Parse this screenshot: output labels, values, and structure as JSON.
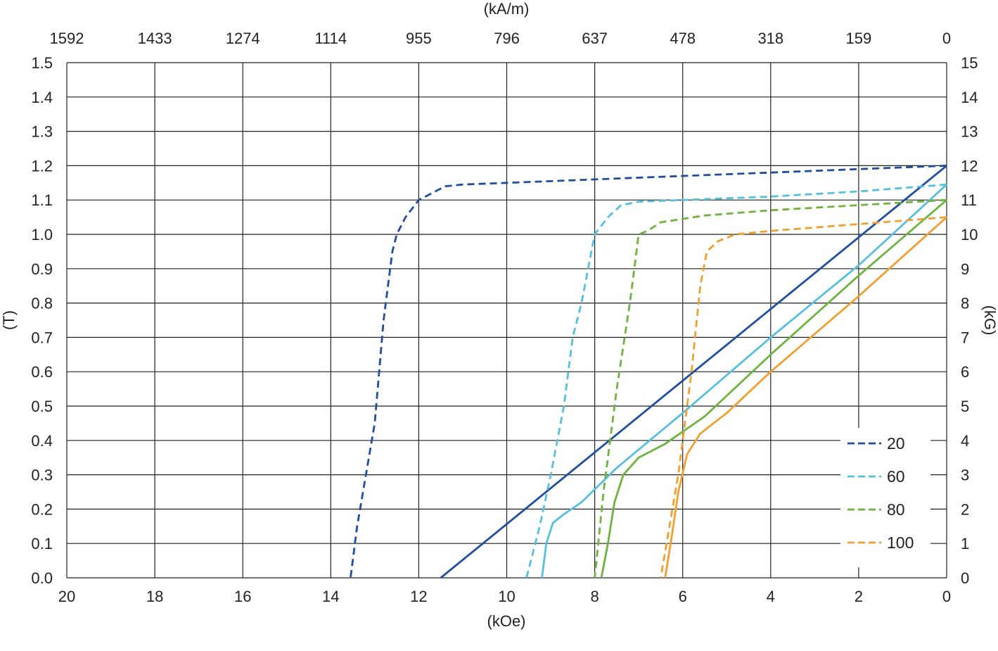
{
  "chart_data": {
    "type": "line",
    "x_bottom": {
      "label": "(kOe)",
      "ticks": [
        "20",
        "18",
        "16",
        "14",
        "12",
        "10",
        "8",
        "6",
        "4",
        "2",
        "0"
      ],
      "range": [
        20,
        0
      ]
    },
    "x_top": {
      "label": "(kA/m)",
      "ticks": [
        "1592",
        "1433",
        "1274",
        "1114",
        "955",
        "796",
        "637",
        "478",
        "318",
        "159",
        "0"
      ]
    },
    "y_left": {
      "label": "(T)",
      "ticks": [
        "0.0",
        "0.1",
        "0.2",
        "0.3",
        "0.4",
        "0.5",
        "0.6",
        "0.7",
        "0.8",
        "0.9",
        "1.0",
        "1.1",
        "1.2",
        "1.3",
        "1.4",
        "1.5"
      ],
      "range": [
        0,
        1.5
      ]
    },
    "y_right": {
      "label": "(kG)",
      "ticks": [
        "0",
        "1",
        "2",
        "3",
        "4",
        "5",
        "6",
        "7",
        "8",
        "9",
        "10",
        "11",
        "12",
        "13",
        "14",
        "15"
      ]
    },
    "grid": true,
    "legend": {
      "placement": "bottom-right"
    },
    "series": [
      {
        "name": "20",
        "style": "dashed",
        "color": "#1f4e9c",
        "group": "20",
        "points": [
          [
            0,
            1.2
          ],
          [
            2,
            1.19
          ],
          [
            4,
            1.18
          ],
          [
            6,
            1.17
          ],
          [
            8,
            1.16
          ],
          [
            10,
            1.15
          ],
          [
            11,
            1.145
          ],
          [
            11.4,
            1.14
          ],
          [
            11.7,
            1.12
          ],
          [
            12.0,
            1.1
          ],
          [
            12.3,
            1.05
          ],
          [
            12.5,
            1.0
          ],
          [
            12.6,
            0.95
          ],
          [
            12.7,
            0.85
          ],
          [
            12.8,
            0.75
          ],
          [
            12.9,
            0.6
          ],
          [
            13.0,
            0.45
          ],
          [
            13.2,
            0.3
          ],
          [
            13.4,
            0.15
          ],
          [
            13.55,
            0.0
          ]
        ]
      },
      {
        "name": "",
        "style": "solid",
        "color": "#1f4e9c",
        "group": "20",
        "points": [
          [
            0,
            1.2
          ],
          [
            11.5,
            0.0
          ]
        ]
      },
      {
        "name": "60",
        "style": "dashed",
        "color": "#56bfe0",
        "group": "60",
        "points": [
          [
            0,
            1.145
          ],
          [
            2,
            1.125
          ],
          [
            4,
            1.11
          ],
          [
            6,
            1.1
          ],
          [
            7,
            1.095
          ],
          [
            7.4,
            1.085
          ],
          [
            7.7,
            1.05
          ],
          [
            8.0,
            1.0
          ],
          [
            8.15,
            0.9
          ],
          [
            8.3,
            0.8
          ],
          [
            8.5,
            0.7
          ],
          [
            8.7,
            0.5
          ],
          [
            9.0,
            0.3
          ],
          [
            9.25,
            0.15
          ],
          [
            9.55,
            0.0
          ]
        ]
      },
      {
        "name": "",
        "style": "solid",
        "color": "#56bfe0",
        "group": "60",
        "points": [
          [
            0,
            1.145
          ],
          [
            2,
            0.91
          ],
          [
            4,
            0.7
          ],
          [
            6,
            0.48
          ],
          [
            7.5,
            0.32
          ],
          [
            8.3,
            0.22
          ],
          [
            8.7,
            0.185
          ],
          [
            8.95,
            0.16
          ],
          [
            9.1,
            0.1
          ],
          [
            9.2,
            0.0
          ]
        ]
      },
      {
        "name": "80",
        "style": "dashed",
        "color": "#6db33f",
        "group": "80",
        "points": [
          [
            0,
            1.1
          ],
          [
            2,
            1.085
          ],
          [
            4,
            1.07
          ],
          [
            5.5,
            1.055
          ],
          [
            6.5,
            1.035
          ],
          [
            6.8,
            1.01
          ],
          [
            7.0,
            1.0
          ],
          [
            7.2,
            0.8
          ],
          [
            7.5,
            0.55
          ],
          [
            7.8,
            0.25
          ],
          [
            8.0,
            0.0
          ]
        ]
      },
      {
        "name": "",
        "style": "solid",
        "color": "#6db33f",
        "group": "80",
        "points": [
          [
            0,
            1.1
          ],
          [
            2,
            0.88
          ],
          [
            4,
            0.65
          ],
          [
            5.5,
            0.47
          ],
          [
            6.4,
            0.39
          ],
          [
            7.0,
            0.35
          ],
          [
            7.35,
            0.3
          ],
          [
            7.55,
            0.22
          ],
          [
            7.7,
            0.1
          ],
          [
            7.85,
            0.0
          ]
        ]
      },
      {
        "name": "100",
        "style": "dashed",
        "color": "#f0a030",
        "group": "100",
        "points": [
          [
            0,
            1.05
          ],
          [
            2,
            1.03
          ],
          [
            4,
            1.01
          ],
          [
            4.8,
            1.0
          ],
          [
            5.2,
            0.98
          ],
          [
            5.45,
            0.95
          ],
          [
            5.6,
            0.85
          ],
          [
            5.8,
            0.6
          ],
          [
            6.1,
            0.3
          ],
          [
            6.5,
            0.0
          ]
        ]
      },
      {
        "name": "",
        "style": "solid",
        "color": "#f0a030",
        "group": "100",
        "points": [
          [
            0,
            1.05
          ],
          [
            2,
            0.82
          ],
          [
            4,
            0.6
          ],
          [
            5.0,
            0.48
          ],
          [
            5.6,
            0.42
          ],
          [
            5.9,
            0.36
          ],
          [
            6.1,
            0.25
          ],
          [
            6.25,
            0.12
          ],
          [
            6.4,
            0.0
          ]
        ]
      }
    ]
  }
}
